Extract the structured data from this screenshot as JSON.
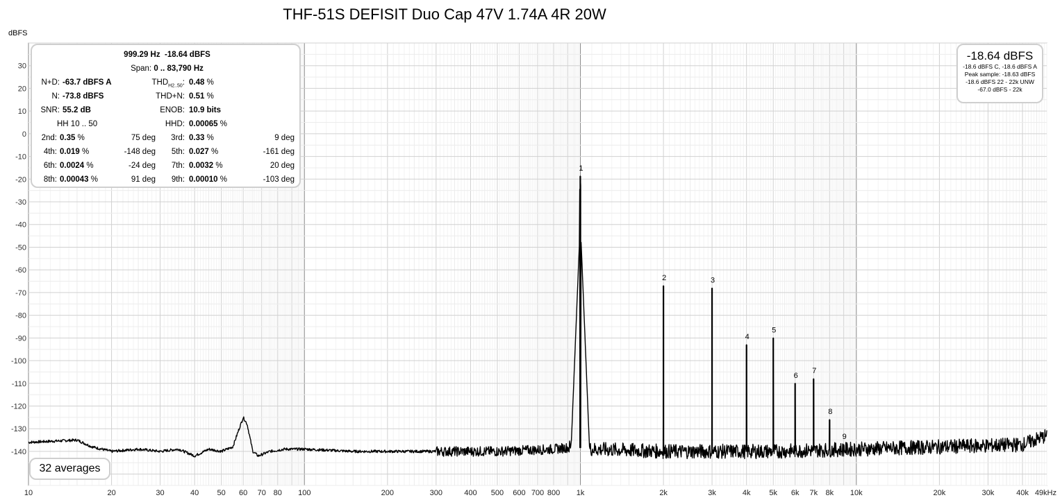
{
  "title": "THF-51S DEFISIT Duo Cap 47V 1.74A 4R 20W",
  "ylabel": "dBFS",
  "stats": {
    "freq": "999.29 Hz",
    "level": "-18.64 dBFS",
    "span_label": "Span:",
    "span": "0 .. 83,790 Hz",
    "nd_label": "N+D:",
    "nd": "-63.7 dBFS A",
    "n_label": "N:",
    "n": "-73.8 dBFS",
    "snr_label": "SNR:",
    "snr": "55.2 dB",
    "hh_label": "HH 10 .. 50",
    "thd_label": "THD",
    "thd_sub": "H2..50",
    "thd_colon": ":",
    "thd": "0.48",
    "thdn_label": "THD+N:",
    "thdn": "0.51",
    "enob_label": "ENOB:",
    "enob": "10.9 bits",
    "hhd_label": "HHD:",
    "hhd": "0.00065",
    "pct": "%",
    "harmonics": [
      {
        "label": "2nd:",
        "value": "0.35",
        "deg": "75 deg"
      },
      {
        "label": "3rd:",
        "value": "0.33",
        "deg": "9 deg"
      },
      {
        "label": "4th:",
        "value": "0.019",
        "deg": "-148 deg"
      },
      {
        "label": "5th:",
        "value": "0.027",
        "deg": "-161 deg"
      },
      {
        "label": "6th:",
        "value": "0.0024",
        "deg": "-24 deg"
      },
      {
        "label": "7th:",
        "value": "0.0032",
        "deg": "20 deg"
      },
      {
        "label": "8th:",
        "value": "0.00043",
        "deg": "91 deg"
      },
      {
        "label": "9th:",
        "value": "0.00010",
        "deg": "-103 deg"
      }
    ]
  },
  "level_box": {
    "main": "-18.64 dBFS",
    "lines": [
      "-18.6 dBFS C, -18.6 dBFS A",
      "Peak sample: -18.63 dBFS",
      "-18.6 dBFS 22 - 22k UNW",
      "-67.0 dBFS - 22k"
    ]
  },
  "averages": "32 averages",
  "chart_data": {
    "type": "line",
    "xscale": "log",
    "xlim": [
      10,
      49000
    ],
    "ylim": [
      -155,
      40
    ],
    "x_ticks": [
      {
        "v": 10,
        "t": "10"
      },
      {
        "v": 20,
        "t": "20"
      },
      {
        "v": 30,
        "t": "30"
      },
      {
        "v": 40,
        "t": "40"
      },
      {
        "v": 50,
        "t": "50"
      },
      {
        "v": 60,
        "t": "60"
      },
      {
        "v": 70,
        "t": "70"
      },
      {
        "v": 80,
        "t": "80"
      },
      {
        "v": 100,
        "t": "100"
      },
      {
        "v": 200,
        "t": "200"
      },
      {
        "v": 300,
        "t": "300"
      },
      {
        "v": 400,
        "t": "400"
      },
      {
        "v": 500,
        "t": "500"
      },
      {
        "v": 600,
        "t": "600"
      },
      {
        "v": 700,
        "t": "700"
      },
      {
        "v": 800,
        "t": "800"
      },
      {
        "v": 1000,
        "t": "1k"
      },
      {
        "v": 2000,
        "t": "2k"
      },
      {
        "v": 3000,
        "t": "3k"
      },
      {
        "v": 4000,
        "t": "4k"
      },
      {
        "v": 5000,
        "t": "5k"
      },
      {
        "v": 6000,
        "t": "6k"
      },
      {
        "v": 7000,
        "t": "7k"
      },
      {
        "v": 8000,
        "t": "8k"
      },
      {
        "v": 10000,
        "t": "10k"
      },
      {
        "v": 20000,
        "t": "20k"
      },
      {
        "v": 30000,
        "t": "30k"
      },
      {
        "v": 40000,
        "t": "40k"
      },
      {
        "v": 49000,
        "t": "49kHz"
      }
    ],
    "y_ticks": [
      30,
      20,
      10,
      0,
      -10,
      -20,
      -30,
      -40,
      -50,
      -60,
      -70,
      -80,
      -90,
      -100,
      -110,
      -120,
      -130,
      -140
    ],
    "fundamental": {
      "x": 999.29,
      "y": -18.64,
      "label": "1"
    },
    "harmonic_peaks": [
      {
        "x": 2000,
        "y": -67,
        "label": "2"
      },
      {
        "x": 3000,
        "y": -68,
        "label": "3"
      },
      {
        "x": 4000,
        "y": -93,
        "label": "4"
      },
      {
        "x": 5000,
        "y": -90,
        "label": "5"
      },
      {
        "x": 6000,
        "y": -110,
        "label": "6"
      },
      {
        "x": 7000,
        "y": -108,
        "label": "7"
      },
      {
        "x": 8000,
        "y": -126,
        "label": "8"
      },
      {
        "x": 9000,
        "y": -137,
        "label": "9"
      }
    ],
    "noise_floor": [
      [
        10,
        -136
      ],
      [
        15,
        -135
      ],
      [
        17,
        -138
      ],
      [
        20,
        -140
      ],
      [
        25,
        -139
      ],
      [
        30,
        -140
      ],
      [
        35,
        -139
      ],
      [
        40,
        -142
      ],
      [
        45,
        -139
      ],
      [
        50,
        -140
      ],
      [
        55,
        -138
      ],
      [
        58,
        -130
      ],
      [
        60,
        -125
      ],
      [
        62,
        -128
      ],
      [
        65,
        -140
      ],
      [
        68,
        -142
      ],
      [
        75,
        -140
      ],
      [
        85,
        -139
      ],
      [
        100,
        -139
      ],
      [
        150,
        -140
      ],
      [
        200,
        -140
      ],
      [
        300,
        -140
      ],
      [
        500,
        -140
      ],
      [
        800,
        -139
      ],
      [
        950,
        -138
      ],
      [
        1100,
        -139
      ],
      [
        2000,
        -140
      ],
      [
        5000,
        -140
      ],
      [
        10000,
        -139
      ],
      [
        20000,
        -138
      ],
      [
        40000,
        -137
      ],
      [
        49000,
        -133
      ]
    ]
  }
}
